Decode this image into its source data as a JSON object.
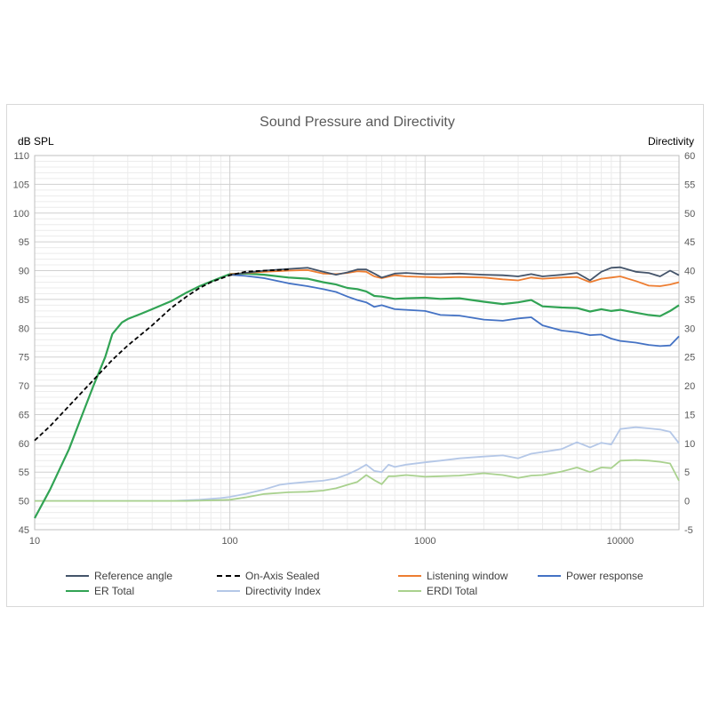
{
  "chart_data": {
    "type": "line",
    "title": "Sound Pressure and Directivity",
    "ylabel": "dB SPL",
    "y2label": "Directivity",
    "xscale": "log",
    "xlim": [
      10,
      20000
    ],
    "ylim": [
      45,
      110
    ],
    "y2lim": [
      -5,
      60
    ],
    "xticks": [
      "10",
      "100",
      "1000",
      "10000"
    ],
    "yticks": [
      "45",
      "50",
      "55",
      "60",
      "65",
      "70",
      "75",
      "80",
      "85",
      "90",
      "95",
      "100",
      "105",
      "110"
    ],
    "y2ticks": [
      "-5",
      "0",
      "5",
      "10",
      "15",
      "20",
      "25",
      "30",
      "35",
      "40",
      "45",
      "50",
      "55",
      "60"
    ],
    "grid": true,
    "legend_position": "bottom",
    "series": [
      {
        "name": "Reference angle",
        "color": "#44546a",
        "dash": "solid",
        "axis": "left",
        "points": [
          [
            100,
            89.3
          ],
          [
            150,
            90.0
          ],
          [
            200,
            90.3
          ],
          [
            250,
            90.5
          ],
          [
            300,
            89.8
          ],
          [
            350,
            89.3
          ],
          [
            400,
            89.7
          ],
          [
            450,
            90.2
          ],
          [
            500,
            90.2
          ],
          [
            550,
            89.5
          ],
          [
            600,
            88.8
          ],
          [
            700,
            89.5
          ],
          [
            800,
            89.6
          ],
          [
            1000,
            89.4
          ],
          [
            1200,
            89.4
          ],
          [
            1500,
            89.5
          ],
          [
            2000,
            89.3
          ],
          [
            2500,
            89.2
          ],
          [
            3000,
            89.0
          ],
          [
            3500,
            89.4
          ],
          [
            4000,
            89.0
          ],
          [
            5000,
            89.3
          ],
          [
            6000,
            89.6
          ],
          [
            7000,
            88.3
          ],
          [
            8000,
            89.8
          ],
          [
            9000,
            90.5
          ],
          [
            10000,
            90.6
          ],
          [
            12000,
            89.8
          ],
          [
            14000,
            89.6
          ],
          [
            16000,
            89.0
          ],
          [
            18000,
            90.0
          ],
          [
            20000,
            89.2
          ]
        ]
      },
      {
        "name": "On-Axis Sealed",
        "color": "#000000",
        "dash": "dash",
        "axis": "left",
        "points": [
          [
            10,
            60.5
          ],
          [
            12,
            63.0
          ],
          [
            15,
            66.5
          ],
          [
            20,
            71.0
          ],
          [
            25,
            74.5
          ],
          [
            30,
            77.0
          ],
          [
            40,
            80.5
          ],
          [
            50,
            83.5
          ],
          [
            60,
            85.5
          ],
          [
            70,
            87.0
          ],
          [
            80,
            88.0
          ],
          [
            100,
            89.2
          ],
          [
            120,
            89.8
          ],
          [
            150,
            90.0
          ],
          [
            200,
            90.2
          ]
        ]
      },
      {
        "name": "Listening window",
        "color": "#ed7d31",
        "dash": "solid",
        "axis": "left",
        "points": [
          [
            100,
            89.4
          ],
          [
            150,
            89.8
          ],
          [
            200,
            90.0
          ],
          [
            250,
            90.1
          ],
          [
            300,
            89.5
          ],
          [
            350,
            89.4
          ],
          [
            400,
            89.6
          ],
          [
            450,
            89.9
          ],
          [
            500,
            89.8
          ],
          [
            550,
            89.0
          ],
          [
            600,
            88.7
          ],
          [
            700,
            89.2
          ],
          [
            800,
            89.0
          ],
          [
            1000,
            88.9
          ],
          [
            1200,
            88.8
          ],
          [
            1500,
            88.9
          ],
          [
            2000,
            88.8
          ],
          [
            2500,
            88.5
          ],
          [
            3000,
            88.3
          ],
          [
            3500,
            88.8
          ],
          [
            4000,
            88.6
          ],
          [
            5000,
            88.8
          ],
          [
            6000,
            88.9
          ],
          [
            7000,
            88.0
          ],
          [
            8000,
            88.6
          ],
          [
            9000,
            88.8
          ],
          [
            10000,
            89.0
          ],
          [
            12000,
            88.2
          ],
          [
            14000,
            87.4
          ],
          [
            16000,
            87.3
          ],
          [
            18000,
            87.6
          ],
          [
            20000,
            88.0
          ]
        ]
      },
      {
        "name": "Power response",
        "color": "#4472c4",
        "dash": "solid",
        "axis": "left",
        "points": [
          [
            100,
            89.3
          ],
          [
            120,
            89.1
          ],
          [
            150,
            88.7
          ],
          [
            200,
            87.8
          ],
          [
            250,
            87.3
          ],
          [
            300,
            86.8
          ],
          [
            350,
            86.3
          ],
          [
            400,
            85.5
          ],
          [
            450,
            84.9
          ],
          [
            500,
            84.5
          ],
          [
            550,
            83.7
          ],
          [
            600,
            84.0
          ],
          [
            700,
            83.3
          ],
          [
            800,
            83.2
          ],
          [
            1000,
            83.0
          ],
          [
            1200,
            82.3
          ],
          [
            1500,
            82.2
          ],
          [
            2000,
            81.5
          ],
          [
            2500,
            81.3
          ],
          [
            3000,
            81.7
          ],
          [
            3500,
            81.9
          ],
          [
            4000,
            80.5
          ],
          [
            5000,
            79.6
          ],
          [
            6000,
            79.3
          ],
          [
            7000,
            78.8
          ],
          [
            8000,
            78.9
          ],
          [
            9000,
            78.2
          ],
          [
            10000,
            77.8
          ],
          [
            12000,
            77.5
          ],
          [
            14000,
            77.1
          ],
          [
            16000,
            76.9
          ],
          [
            18000,
            77.0
          ],
          [
            20000,
            78.6
          ]
        ]
      },
      {
        "name": "ER Total",
        "color": "#31a354",
        "dash": "solid",
        "axis": "left",
        "points": [
          [
            10,
            47.0
          ],
          [
            12,
            52.0
          ],
          [
            15,
            59.0
          ],
          [
            18,
            66.0
          ],
          [
            20,
            70.0
          ],
          [
            23,
            75.0
          ],
          [
            25,
            79.0
          ],
          [
            28,
            81.0
          ],
          [
            30,
            81.6
          ],
          [
            35,
            82.5
          ],
          [
            40,
            83.3
          ],
          [
            50,
            84.7
          ],
          [
            60,
            86.2
          ],
          [
            70,
            87.3
          ],
          [
            80,
            88.1
          ],
          [
            90,
            88.8
          ],
          [
            100,
            89.4
          ],
          [
            120,
            89.5
          ],
          [
            150,
            89.3
          ],
          [
            200,
            88.8
          ],
          [
            250,
            88.6
          ],
          [
            300,
            88.0
          ],
          [
            350,
            87.6
          ],
          [
            400,
            87.0
          ],
          [
            450,
            86.8
          ],
          [
            500,
            86.4
          ],
          [
            550,
            85.6
          ],
          [
            600,
            85.5
          ],
          [
            700,
            85.1
          ],
          [
            800,
            85.2
          ],
          [
            1000,
            85.3
          ],
          [
            1200,
            85.1
          ],
          [
            1500,
            85.2
          ],
          [
            2000,
            84.6
          ],
          [
            2500,
            84.2
          ],
          [
            3000,
            84.5
          ],
          [
            3500,
            84.9
          ],
          [
            4000,
            83.8
          ],
          [
            5000,
            83.6
          ],
          [
            6000,
            83.5
          ],
          [
            7000,
            82.9
          ],
          [
            8000,
            83.3
          ],
          [
            9000,
            83.0
          ],
          [
            10000,
            83.2
          ],
          [
            12000,
            82.7
          ],
          [
            14000,
            82.3
          ],
          [
            16000,
            82.1
          ],
          [
            18000,
            83.0
          ],
          [
            20000,
            84.0
          ]
        ]
      },
      {
        "name": "Directivity Index",
        "color": "#b4c7e7",
        "dash": "solid",
        "axis": "right",
        "points": [
          [
            10,
            0
          ],
          [
            50,
            0
          ],
          [
            70,
            0.2
          ],
          [
            90,
            0.5
          ],
          [
            100,
            0.7
          ],
          [
            120,
            1.2
          ],
          [
            150,
            2.0
          ],
          [
            180,
            2.8
          ],
          [
            200,
            3.0
          ],
          [
            250,
            3.3
          ],
          [
            300,
            3.5
          ],
          [
            350,
            3.9
          ],
          [
            400,
            4.6
          ],
          [
            450,
            5.4
          ],
          [
            500,
            6.3
          ],
          [
            550,
            5.2
          ],
          [
            600,
            5.0
          ],
          [
            650,
            6.3
          ],
          [
            700,
            5.9
          ],
          [
            800,
            6.3
          ],
          [
            1000,
            6.7
          ],
          [
            1200,
            7.0
          ],
          [
            1500,
            7.4
          ],
          [
            2000,
            7.7
          ],
          [
            2500,
            7.9
          ],
          [
            3000,
            7.4
          ],
          [
            3500,
            8.2
          ],
          [
            4000,
            8.5
          ],
          [
            5000,
            9.0
          ],
          [
            6000,
            10.2
          ],
          [
            7000,
            9.3
          ],
          [
            8000,
            10.1
          ],
          [
            9000,
            9.8
          ],
          [
            10000,
            12.5
          ],
          [
            12000,
            12.8
          ],
          [
            14000,
            12.6
          ],
          [
            16000,
            12.4
          ],
          [
            18000,
            12.0
          ],
          [
            20000,
            10.0
          ]
        ]
      },
      {
        "name": "ERDI Total",
        "color": "#a9d18e",
        "dash": "solid",
        "axis": "right",
        "points": [
          [
            10,
            0
          ],
          [
            60,
            0
          ],
          [
            80,
            0.1
          ],
          [
            100,
            0.2
          ],
          [
            120,
            0.6
          ],
          [
            150,
            1.2
          ],
          [
            200,
            1.5
          ],
          [
            250,
            1.6
          ],
          [
            300,
            1.8
          ],
          [
            350,
            2.2
          ],
          [
            400,
            2.8
          ],
          [
            450,
            3.3
          ],
          [
            500,
            4.5
          ],
          [
            550,
            3.6
          ],
          [
            600,
            2.9
          ],
          [
            650,
            4.3
          ],
          [
            700,
            4.3
          ],
          [
            800,
            4.5
          ],
          [
            1000,
            4.2
          ],
          [
            1200,
            4.3
          ],
          [
            1500,
            4.4
          ],
          [
            2000,
            4.8
          ],
          [
            2500,
            4.5
          ],
          [
            3000,
            4.0
          ],
          [
            3500,
            4.4
          ],
          [
            4000,
            4.5
          ],
          [
            5000,
            5.1
          ],
          [
            6000,
            5.8
          ],
          [
            7000,
            5.0
          ],
          [
            8000,
            5.8
          ],
          [
            9000,
            5.7
          ],
          [
            10000,
            7.0
          ],
          [
            12000,
            7.1
          ],
          [
            14000,
            7.0
          ],
          [
            16000,
            6.8
          ],
          [
            18000,
            6.5
          ],
          [
            20000,
            3.5
          ]
        ]
      }
    ]
  }
}
